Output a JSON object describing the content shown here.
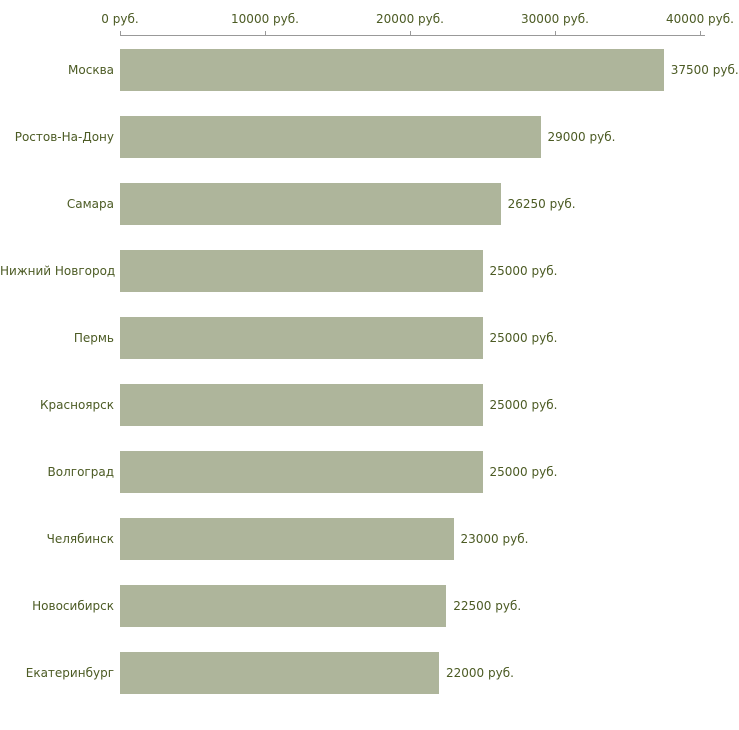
{
  "chart_data": {
    "type": "bar",
    "orientation": "horizontal",
    "title": "",
    "xlabel": "",
    "ylabel": "",
    "xlim": [
      0,
      40000
    ],
    "grid": false,
    "legend": "none",
    "categories": [
      "Москва",
      "Ростов-На-Дону",
      "Самара",
      "Нижний Новгород",
      "Пермь",
      "Красноярск",
      "Волгоград",
      "Челябинск",
      "Новосибирск",
      "Екатеринбург"
    ],
    "values": [
      37500,
      29000,
      26250,
      25000,
      25000,
      25000,
      25000,
      23000,
      22500,
      22000
    ],
    "value_labels": [
      "37500 руб.",
      "29000 руб.",
      "26250 руб.",
      "25000 руб.",
      "25000 руб.",
      "25000 руб.",
      "25000 руб.",
      "23000 руб.",
      "22500 руб.",
      "22000 руб."
    ],
    "x_ticks": [
      {
        "value": 0,
        "label": "0 руб."
      },
      {
        "value": 10000,
        "label": "10000 руб."
      },
      {
        "value": 20000,
        "label": "20000 руб."
      },
      {
        "value": 30000,
        "label": "30000 руб."
      },
      {
        "value": 40000,
        "label": "40000 руб."
      }
    ],
    "colors": {
      "bar": "#aeb59b",
      "text": "#4c5b24",
      "axis": "#999999",
      "background": "#ffffff"
    }
  }
}
